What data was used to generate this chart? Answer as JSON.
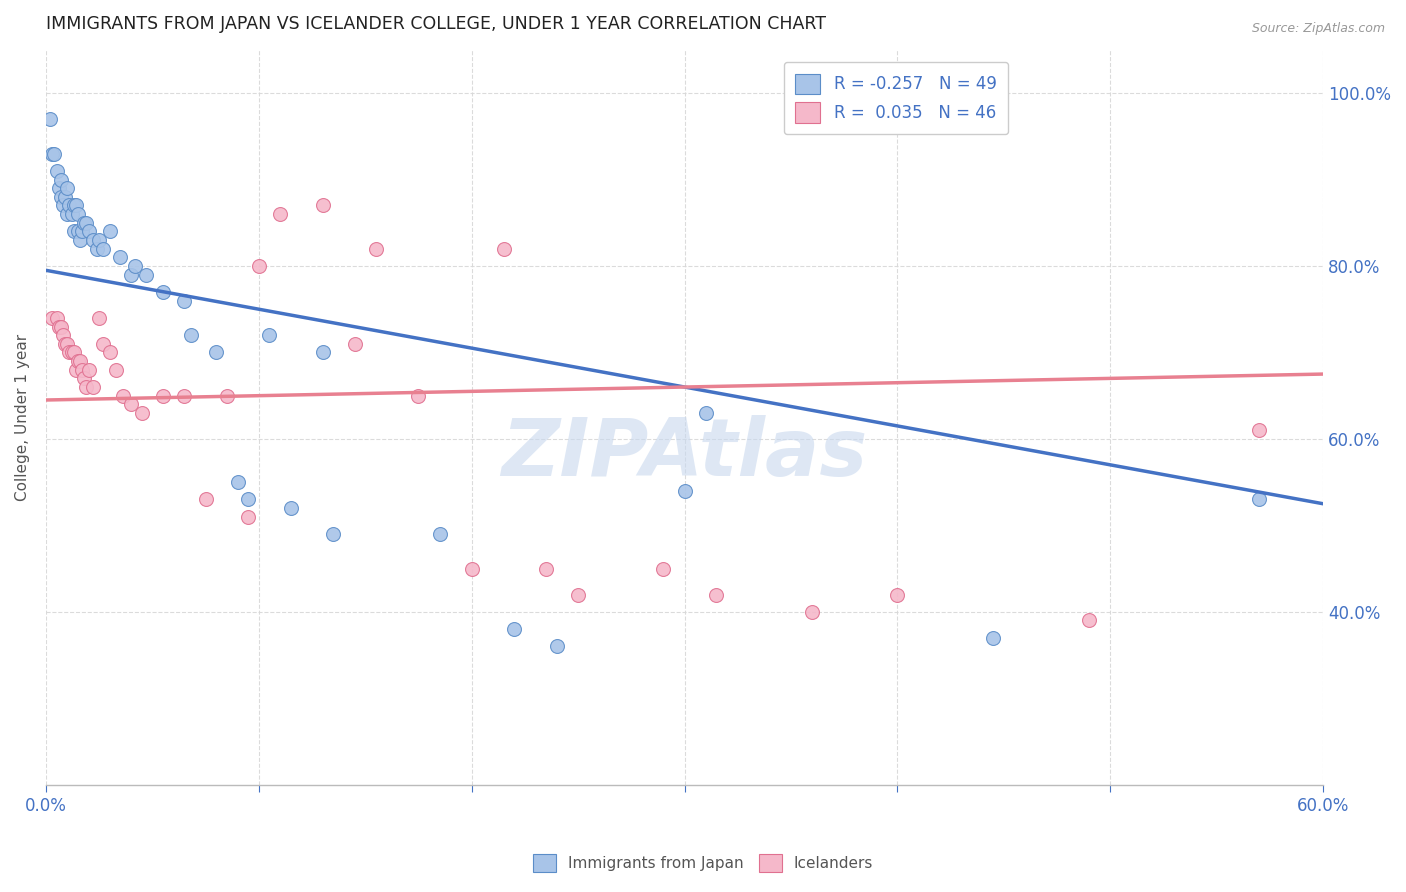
{
  "title": "IMMIGRANTS FROM JAPAN VS ICELANDER COLLEGE, UNDER 1 YEAR CORRELATION CHART",
  "source": "Source: ZipAtlas.com",
  "ylabel": "College, Under 1 year",
  "xlim": [
    0.0,
    0.6
  ],
  "ylim": [
    0.2,
    1.05
  ],
  "xtick_positions": [
    0.0,
    0.1,
    0.2,
    0.3,
    0.4,
    0.5,
    0.6
  ],
  "ytick_positions": [
    0.4,
    0.6,
    0.8,
    1.0
  ],
  "yticklabels_right": [
    "40.0%",
    "60.0%",
    "80.0%",
    "100.0%"
  ],
  "blue_color": "#a8c4e8",
  "pink_color": "#f5b8ca",
  "blue_edge_color": "#5b8dc8",
  "pink_edge_color": "#e07090",
  "blue_line_color": "#4472c4",
  "pink_line_color": "#e88090",
  "watermark": "ZIPAtlas",
  "blue_scatter_x": [
    0.002,
    0.003,
    0.004,
    0.005,
    0.006,
    0.007,
    0.007,
    0.008,
    0.009,
    0.01,
    0.01,
    0.011,
    0.012,
    0.013,
    0.013,
    0.014,
    0.015,
    0.015,
    0.016,
    0.017,
    0.018,
    0.019,
    0.02,
    0.022,
    0.024,
    0.025,
    0.027,
    0.03,
    0.035,
    0.04,
    0.042,
    0.047,
    0.055,
    0.065,
    0.068,
    0.08,
    0.09,
    0.095,
    0.105,
    0.115,
    0.13,
    0.135,
    0.185,
    0.22,
    0.24,
    0.3,
    0.31,
    0.445,
    0.57
  ],
  "blue_scatter_y": [
    0.97,
    0.93,
    0.93,
    0.91,
    0.89,
    0.9,
    0.88,
    0.87,
    0.88,
    0.86,
    0.89,
    0.87,
    0.86,
    0.87,
    0.84,
    0.87,
    0.86,
    0.84,
    0.83,
    0.84,
    0.85,
    0.85,
    0.84,
    0.83,
    0.82,
    0.83,
    0.82,
    0.84,
    0.81,
    0.79,
    0.8,
    0.79,
    0.77,
    0.76,
    0.72,
    0.7,
    0.55,
    0.53,
    0.72,
    0.52,
    0.7,
    0.49,
    0.49,
    0.38,
    0.36,
    0.54,
    0.63,
    0.37,
    0.53
  ],
  "pink_scatter_x": [
    0.003,
    0.005,
    0.006,
    0.007,
    0.008,
    0.009,
    0.01,
    0.011,
    0.012,
    0.013,
    0.014,
    0.015,
    0.016,
    0.017,
    0.018,
    0.019,
    0.02,
    0.022,
    0.025,
    0.027,
    0.03,
    0.033,
    0.036,
    0.04,
    0.045,
    0.055,
    0.065,
    0.075,
    0.085,
    0.095,
    0.1,
    0.11,
    0.13,
    0.145,
    0.155,
    0.175,
    0.2,
    0.215,
    0.235,
    0.25,
    0.29,
    0.315,
    0.36,
    0.4,
    0.49,
    0.57
  ],
  "pink_scatter_y": [
    0.74,
    0.74,
    0.73,
    0.73,
    0.72,
    0.71,
    0.71,
    0.7,
    0.7,
    0.7,
    0.68,
    0.69,
    0.69,
    0.68,
    0.67,
    0.66,
    0.68,
    0.66,
    0.74,
    0.71,
    0.7,
    0.68,
    0.65,
    0.64,
    0.63,
    0.65,
    0.65,
    0.53,
    0.65,
    0.51,
    0.8,
    0.86,
    0.87,
    0.71,
    0.82,
    0.65,
    0.45,
    0.82,
    0.45,
    0.42,
    0.45,
    0.42,
    0.4,
    0.42,
    0.39,
    0.61
  ],
  "blue_trendline_x": [
    0.0,
    0.6
  ],
  "blue_trendline_y": [
    0.795,
    0.525
  ],
  "pink_trendline_x": [
    0.0,
    0.6
  ],
  "pink_trendline_y": [
    0.645,
    0.675
  ],
  "background_color": "#ffffff",
  "grid_color": "#d8d8d8",
  "title_color": "#222222",
  "axis_color": "#4472c4",
  "watermark_color": "#c8d8ee"
}
